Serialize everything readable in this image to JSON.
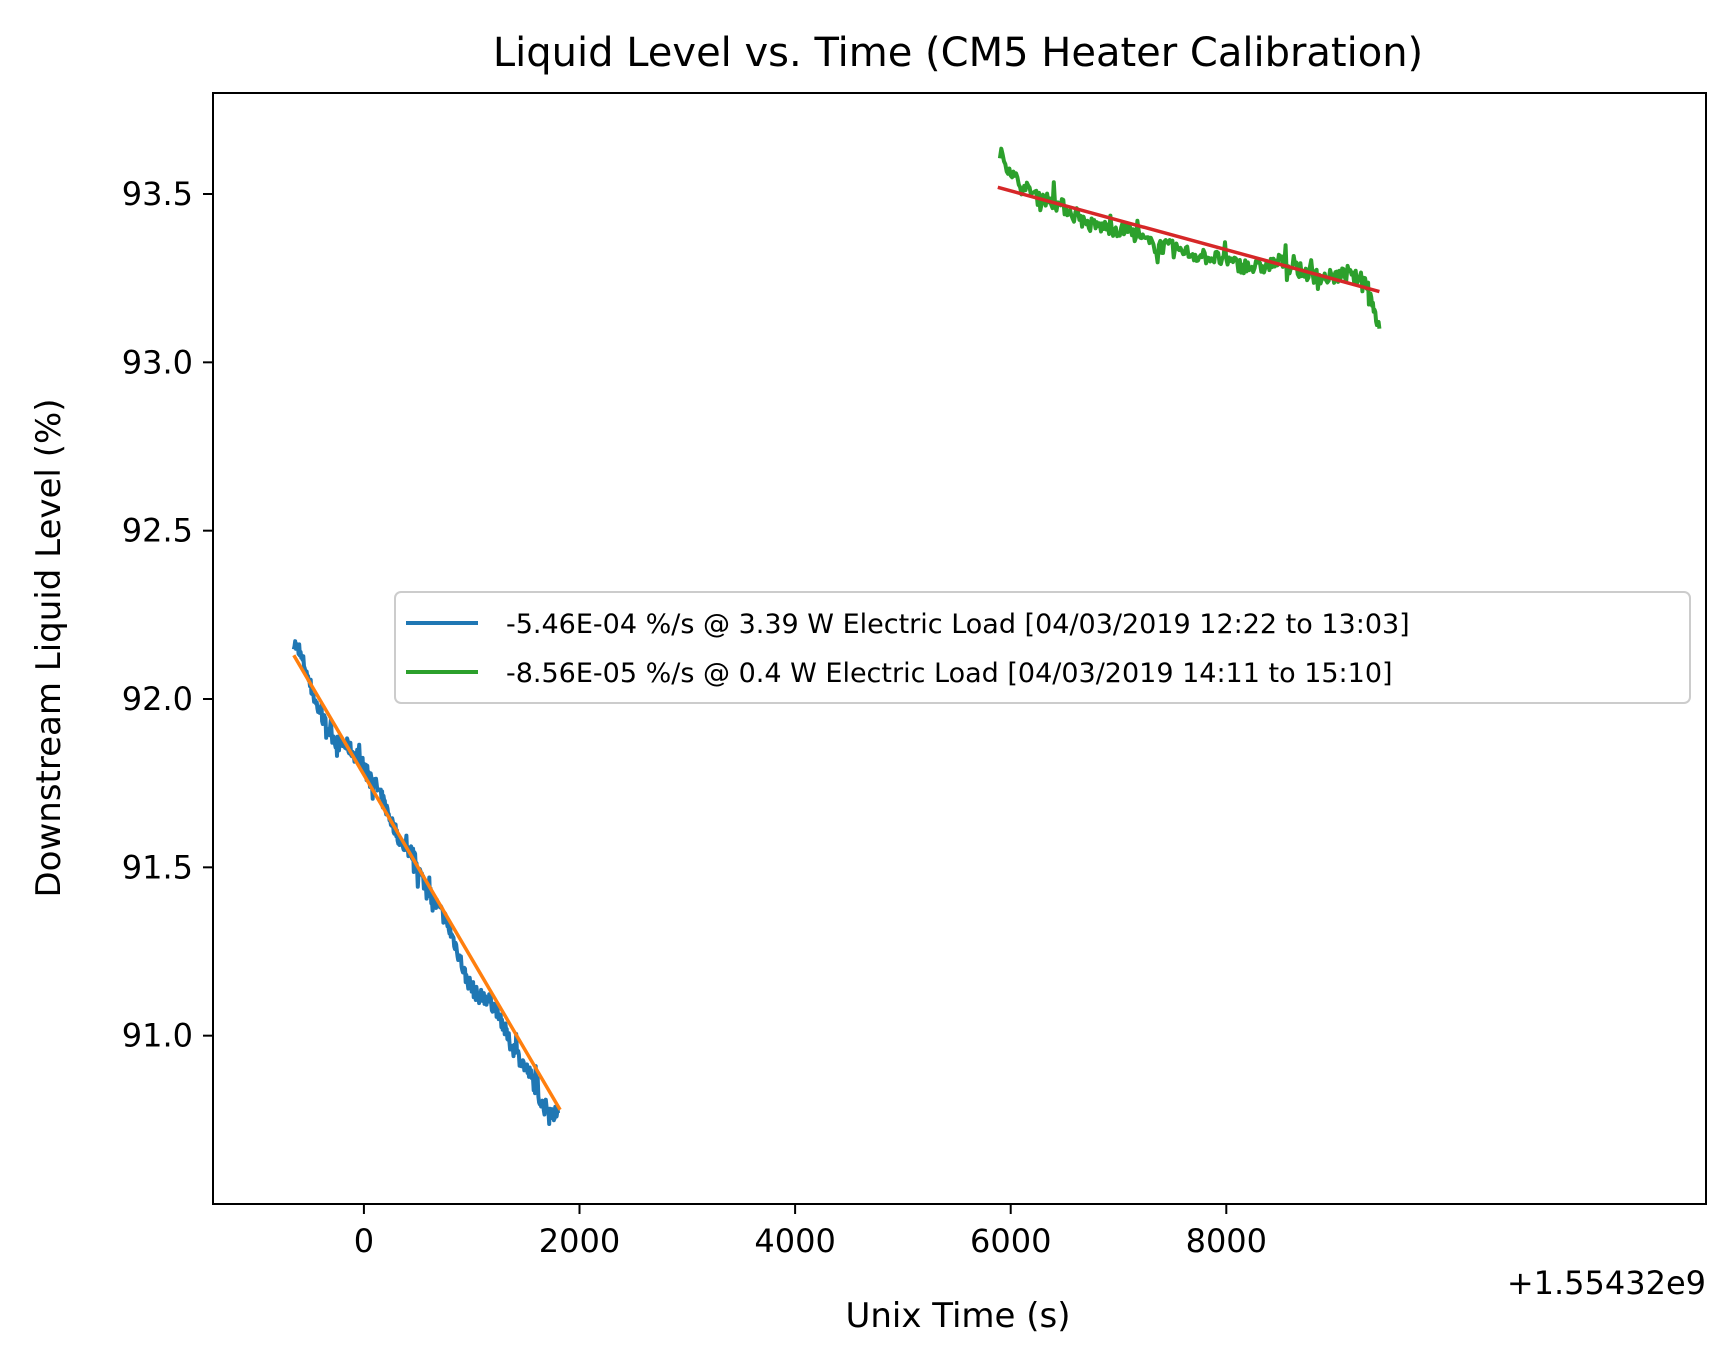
{
  "chart_data": {
    "type": "line",
    "title": "Liquid Level vs. Time (CM5 Heater Calibration)",
    "xlabel": "Unix Time (s)",
    "ylabel": "Downstream Liquid Level (%)",
    "x_offset_text": "+1.55432e9",
    "xlim": [
      -1400,
      12450
    ],
    "ylim": [
      90.5,
      93.8
    ],
    "xticks": [
      0,
      2000,
      4000,
      6000,
      8000
    ],
    "xtick_labels": [
      "0",
      "2000",
      "4000",
      "6000",
      "8000"
    ],
    "yticks": [
      91.0,
      91.5,
      92.0,
      92.5,
      93.0,
      93.5
    ],
    "ytick_labels": [
      "91.0",
      "91.5",
      "92.0",
      "92.5",
      "93.0",
      "93.5"
    ],
    "grid": false,
    "legend": {
      "placement": "center-right",
      "entries": [
        {
          "label": "-5.46E-04 %/s @ 3.39 W Electric Load [04/03/2019 12:22 to 13:03]",
          "color": "#1f77b4"
        },
        {
          "label": "-8.56E-05 %/s @ 0.4 W Electric Load [04/03/2019 14:11 to 15:10]",
          "color": "#2ca02c"
        }
      ]
    },
    "series": [
      {
        "color": "#1f77b4",
        "style": "noisy-data",
        "x": [
          -650,
          -550,
          -450,
          -350,
          -250,
          -150,
          -50,
          50,
          150,
          250,
          350,
          450,
          550,
          650,
          750,
          850,
          950,
          1050,
          1150,
          1250,
          1350,
          1450,
          1550,
          1650,
          1750,
          1800
        ],
        "y": [
          92.17,
          92.1,
          91.99,
          91.92,
          91.87,
          91.86,
          91.82,
          91.78,
          91.72,
          91.64,
          91.57,
          91.54,
          91.46,
          91.4,
          91.35,
          91.27,
          91.17,
          91.12,
          91.11,
          91.07,
          90.98,
          90.93,
          90.88,
          90.8,
          90.77,
          90.77
        ]
      },
      {
        "color": "#ff7f0e",
        "style": "fit",
        "x": [
          -650,
          1820
        ],
        "y": [
          92.13,
          90.78
        ]
      },
      {
        "color": "#2ca02c",
        "style": "noisy-data",
        "x": [
          5900,
          6100,
          6300,
          6500,
          6700,
          6900,
          7100,
          7300,
          7500,
          7700,
          7900,
          8100,
          8300,
          8500,
          8700,
          8900,
          9100,
          9300,
          9420
        ],
        "y": [
          93.62,
          93.52,
          93.49,
          93.46,
          93.41,
          93.4,
          93.39,
          93.35,
          93.34,
          93.32,
          93.31,
          93.29,
          93.28,
          93.3,
          93.27,
          93.25,
          93.26,
          93.24,
          93.1
        ]
      },
      {
        "color": "#d62728",
        "style": "fit",
        "x": [
          5880,
          9420
        ],
        "y": [
          93.52,
          93.21
        ]
      }
    ]
  }
}
